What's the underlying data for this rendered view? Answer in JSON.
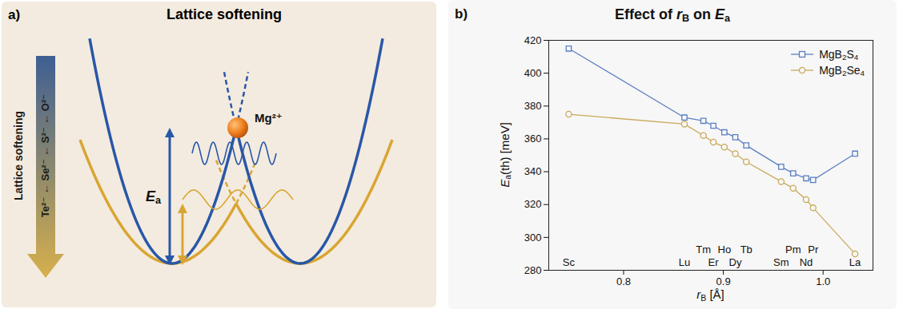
{
  "diagram": {
    "panel": "a)",
    "title": "Lattice softening",
    "arrow_label": "Lattice softening",
    "anion_series": "Te²⁻ ← Se²⁻ ← S²⁻ ← O²⁻",
    "ion": "Mg²⁺",
    "energy_label": [
      {
        "i": "E"
      },
      {
        "sub": "a"
      }
    ]
  },
  "chart_data": {
    "type": "line",
    "panel": "b)",
    "title": [
      "Effect of ",
      {
        "i": "r"
      },
      {
        "sub": "B"
      },
      " on ",
      {
        "i": "E"
      },
      {
        "sub": "a"
      }
    ],
    "x_label": [
      {
        "i": "r"
      },
      {
        "sub": "B"
      },
      " [Å]"
    ],
    "y_label": [
      {
        "i": "E"
      },
      {
        "sub": "a"
      },
      "(th) [meV]"
    ],
    "x": [
      0.745,
      0.861,
      0.88,
      0.89,
      0.901,
      0.912,
      0.923,
      0.958,
      0.97,
      0.983,
      0.99,
      1.032
    ],
    "point_labels": [
      "Sc",
      "Lu",
      "Tm",
      "Er",
      "Ho",
      "Dy",
      "Tb",
      "Sm",
      "Pm",
      "Nd",
      "Pr",
      "La"
    ],
    "series": [
      {
        "name": [
          "MgB",
          {
            "sub": "2"
          },
          "S",
          {
            "sub": "4"
          }
        ],
        "color": "#5b7fc4",
        "marker": "square",
        "values": [
          415,
          373,
          371,
          368,
          364,
          361,
          356,
          343,
          339,
          336,
          335,
          351
        ]
      },
      {
        "name": [
          "MgB",
          {
            "sub": "2"
          },
          "Se",
          {
            "sub": "4"
          }
        ],
        "color": "#c9a95a",
        "marker": "circle",
        "values": [
          375,
          369,
          362,
          358,
          355,
          351,
          346,
          334,
          330,
          323,
          318,
          290
        ]
      }
    ],
    "xlim": [
      0.725,
      1.05
    ],
    "xticks": [
      0.8,
      0.9,
      {
        "value": 1,
        "label": "1.0"
      }
    ],
    "ylim": [
      280,
      420
    ],
    "yticks": [
      280,
      300,
      320,
      340,
      360,
      380,
      400,
      420
    ],
    "legend": "upper right",
    "grid": false
  }
}
